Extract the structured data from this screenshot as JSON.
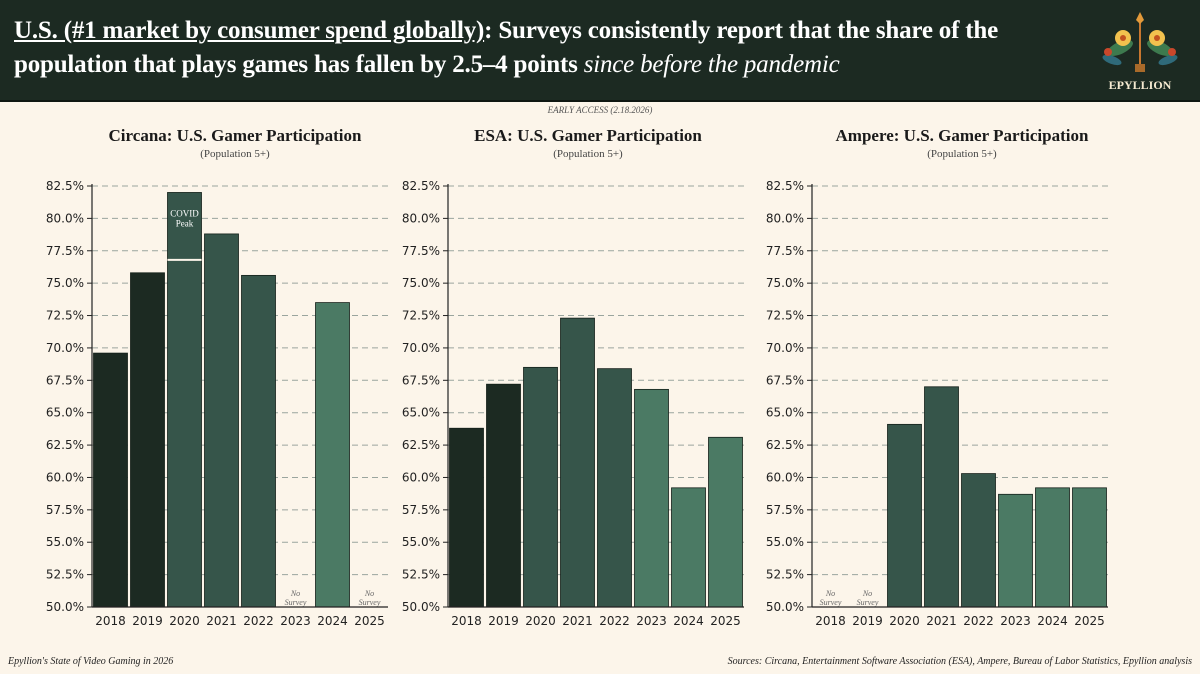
{
  "header": {
    "headline_underlined": "U.S. (#1 market by consumer spend globally)",
    "headline_main": ": Surveys consistently report that the share of the population that plays games has fallen by 2.5–4 points ",
    "headline_italic": "since before the pandemic",
    "logo_text": "EPYLLION"
  },
  "early_access": "EARLY ACCESS (2.18.2026)",
  "colors": {
    "header_bg": "#1c2a22",
    "background": "#fcf5ea",
    "dark": "#1c2a22",
    "mid": "#36554a",
    "light": "#4b7a64"
  },
  "footer": {
    "left": "Epyllion's State of Video Gaming in 2026",
    "right": "Sources: Circana, Entertainment Software Association (ESA), Ampere, Bureau of Labor Statistics, Epyllion analysis"
  },
  "chart_data": [
    {
      "type": "bar",
      "title": "Circana: U.S. Gamer Participation",
      "subtitle": "(Population 5+)",
      "categories": [
        "2018",
        "2019",
        "2020",
        "2021",
        "2022",
        "2023",
        "2024",
        "2025"
      ],
      "values": [
        69.6,
        75.8,
        82.0,
        78.8,
        75.6,
        null,
        73.5,
        null
      ],
      "shades": [
        "dark",
        "dark",
        "mid",
        "mid",
        "mid",
        "light",
        "light",
        "light"
      ],
      "ylim": [
        50,
        82.5
      ],
      "yticks": [
        "50.0%",
        "52.5%",
        "55.0%",
        "57.5%",
        "60.0%",
        "62.5%",
        "65.0%",
        "67.5%",
        "70.0%",
        "72.5%",
        "75.0%",
        "77.5%",
        "80.0%",
        "82.5%"
      ],
      "grid": true,
      "missing_label": [
        "No",
        "Survey"
      ],
      "annotation": {
        "category": "2020",
        "text": [
          "COVID",
          "Peak"
        ],
        "split_at": 76.8
      }
    },
    {
      "type": "bar",
      "title": "ESA: U.S. Gamer Participation",
      "subtitle": "(Population 5+)",
      "categories": [
        "2018",
        "2019",
        "2020",
        "2021",
        "2022",
        "2023",
        "2024",
        "2025"
      ],
      "values": [
        63.8,
        67.2,
        68.5,
        72.3,
        68.4,
        66.8,
        59.2,
        63.1
      ],
      "shades": [
        "dark",
        "dark",
        "mid",
        "mid",
        "mid",
        "light",
        "light",
        "light"
      ],
      "ylim": [
        50,
        82.5
      ],
      "yticks": [
        "50.0%",
        "52.5%",
        "55.0%",
        "57.5%",
        "60.0%",
        "62.5%",
        "65.0%",
        "67.5%",
        "70.0%",
        "72.5%",
        "75.0%",
        "77.5%",
        "80.0%",
        "82.5%"
      ],
      "grid": true,
      "missing_label": [
        "No",
        "Survey"
      ]
    },
    {
      "type": "bar",
      "title": "Ampere: U.S. Gamer Participation",
      "subtitle": "(Population 5+)",
      "categories": [
        "2018",
        "2019",
        "2020",
        "2021",
        "2022",
        "2023",
        "2024",
        "2025"
      ],
      "values": [
        null,
        null,
        64.1,
        67.0,
        60.3,
        58.7,
        59.2,
        59.2
      ],
      "shades": [
        "dark",
        "dark",
        "mid",
        "mid",
        "mid",
        "light",
        "light",
        "light"
      ],
      "ylim": [
        50,
        82.5
      ],
      "yticks": [
        "50.0%",
        "52.5%",
        "55.0%",
        "57.5%",
        "60.0%",
        "62.5%",
        "65.0%",
        "67.5%",
        "70.0%",
        "72.5%",
        "75.0%",
        "77.5%",
        "80.0%",
        "82.5%"
      ],
      "grid": true,
      "missing_label": [
        "No",
        "Survey"
      ]
    }
  ]
}
